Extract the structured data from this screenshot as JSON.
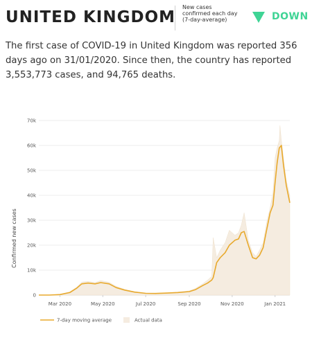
{
  "header": {
    "country": "UNITED KINGDOM",
    "trend_label": "New cases confirmed each day (7-day-average)",
    "trend_value": "DOWN",
    "trend_color": "#3fd495"
  },
  "summary": "The first case of COVID-19 in United Kingdom was reported 356 days ago on 31/01/2020. Since then, the country has reported 3,553,773 cases, and 94,765 deaths.",
  "chart_data": {
    "type": "area",
    "title": "",
    "xlabel": "",
    "ylabel": "Confirmed new cases",
    "ylim": [
      0,
      70000
    ],
    "xlim": [
      "2020-01-31",
      "2021-01-22"
    ],
    "yticks": [
      {
        "value": 0,
        "label": "0"
      },
      {
        "value": 10000,
        "label": "10k"
      },
      {
        "value": 20000,
        "label": "20k"
      },
      {
        "value": 30000,
        "label": "30k"
      },
      {
        "value": 40000,
        "label": "40k"
      },
      {
        "value": 50000,
        "label": "50k"
      },
      {
        "value": 60000,
        "label": "60k"
      },
      {
        "value": 70000,
        "label": "70k"
      }
    ],
    "xticks": [
      {
        "date": "2020-03-01",
        "label": "Mar 2020"
      },
      {
        "date": "2020-05-01",
        "label": "May 2020"
      },
      {
        "date": "2020-07-01",
        "label": "Jul 2020"
      },
      {
        "date": "2020-09-01",
        "label": "Sep 2020"
      },
      {
        "date": "2020-11-01",
        "label": "Nov 2020"
      },
      {
        "date": "2021-01-01",
        "label": "Jan 2021"
      }
    ],
    "legend": {
      "position": "bottom-left",
      "entries": [
        "7-day moving average",
        "Actual data"
      ]
    },
    "colors": {
      "line": "#e8a92c",
      "area": "#f5ece0"
    },
    "series": [
      {
        "name": "7-day moving average",
        "x": [
          "2020-01-31",
          "2020-02-15",
          "2020-03-01",
          "2020-03-15",
          "2020-03-25",
          "2020-04-01",
          "2020-04-10",
          "2020-04-20",
          "2020-04-28",
          "2020-05-10",
          "2020-05-20",
          "2020-06-01",
          "2020-06-15",
          "2020-07-01",
          "2020-07-15",
          "2020-08-01",
          "2020-08-15",
          "2020-09-01",
          "2020-09-10",
          "2020-09-20",
          "2020-09-27",
          "2020-10-03",
          "2020-10-05",
          "2020-10-10",
          "2020-10-15",
          "2020-10-22",
          "2020-10-28",
          "2020-11-05",
          "2020-11-10",
          "2020-11-14",
          "2020-11-18",
          "2020-11-24",
          "2020-11-30",
          "2020-12-05",
          "2020-12-10",
          "2020-12-15",
          "2020-12-20",
          "2020-12-25",
          "2020-12-29",
          "2021-01-01",
          "2021-01-04",
          "2021-01-07",
          "2021-01-10",
          "2021-01-13",
          "2021-01-17",
          "2021-01-22"
        ],
        "y": [
          0,
          10,
          200,
          1000,
          2800,
          4500,
          4800,
          4500,
          5000,
          4500,
          3000,
          2000,
          1200,
          700,
          650,
          800,
          1000,
          1400,
          2200,
          3800,
          4800,
          6000,
          7000,
          13000,
          15000,
          17000,
          20000,
          22000,
          22500,
          25000,
          25500,
          20000,
          15000,
          14500,
          16000,
          19000,
          26000,
          33000,
          36000,
          45000,
          53000,
          59000,
          60000,
          52000,
          44000,
          37000
        ]
      },
      {
        "name": "Actual data",
        "x": [
          "2020-01-31",
          "2020-02-15",
          "2020-03-01",
          "2020-03-15",
          "2020-03-25",
          "2020-04-01",
          "2020-04-10",
          "2020-04-20",
          "2020-04-28",
          "2020-05-10",
          "2020-05-20",
          "2020-06-01",
          "2020-06-15",
          "2020-07-01",
          "2020-07-15",
          "2020-08-01",
          "2020-08-15",
          "2020-09-01",
          "2020-09-10",
          "2020-09-20",
          "2020-09-27",
          "2020-10-03",
          "2020-10-05",
          "2020-10-10",
          "2020-10-15",
          "2020-10-22",
          "2020-10-28",
          "2020-11-05",
          "2020-11-10",
          "2020-11-14",
          "2020-11-18",
          "2020-11-24",
          "2020-11-30",
          "2020-12-05",
          "2020-12-10",
          "2020-12-15",
          "2020-12-20",
          "2020-12-25",
          "2020-12-29",
          "2021-01-01",
          "2021-01-04",
          "2021-01-07",
          "2021-01-08",
          "2021-01-10",
          "2021-01-13",
          "2021-01-17",
          "2021-01-22"
        ],
        "y": [
          0,
          20,
          300,
          1300,
          3200,
          5200,
          5500,
          5000,
          5800,
          5100,
          3500,
          2300,
          1400,
          800,
          750,
          950,
          1200,
          1700,
          2700,
          4500,
          6000,
          7500,
          23000,
          15000,
          18000,
          21000,
          26000,
          24000,
          25000,
          28000,
          33000,
          22000,
          17000,
          15500,
          18000,
          21000,
          29000,
          35000,
          41000,
          55000,
          59000,
          62000,
          68000,
          62000,
          55000,
          46000,
          40000
        ]
      }
    ]
  }
}
